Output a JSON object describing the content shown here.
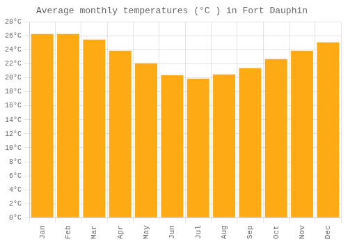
{
  "chart_data": {
    "type": "bar",
    "title": "Average monthly temperatures (°C ) in Fort Dauphin",
    "categories": [
      "Jan",
      "Feb",
      "Mar",
      "Apr",
      "May",
      "Jun",
      "Jul",
      "Aug",
      "Sep",
      "Oct",
      "Nov",
      "Dec"
    ],
    "values": [
      26.3,
      26.3,
      25.5,
      23.9,
      22.1,
      20.4,
      19.9,
      20.5,
      21.4,
      22.7,
      23.9,
      25.1
    ],
    "color": "#FDAA14",
    "ylim": [
      0,
      28
    ],
    "yticks": [
      {
        "value": 0,
        "label": "0°C"
      },
      {
        "value": 2,
        "label": "2°C"
      },
      {
        "value": 4,
        "label": "4°C"
      },
      {
        "value": 6,
        "label": "6°C"
      },
      {
        "value": 8,
        "label": "8°C"
      },
      {
        "value": 10,
        "label": "10°C"
      },
      {
        "value": 12,
        "label": "12°C"
      },
      {
        "value": 14,
        "label": "14°C"
      },
      {
        "value": 16,
        "label": "16°C"
      },
      {
        "value": 18,
        "label": "18°C"
      },
      {
        "value": 20,
        "label": "20°C"
      },
      {
        "value": 22,
        "label": "22°C"
      },
      {
        "value": 24,
        "label": "24°C"
      },
      {
        "value": 26,
        "label": "26°C"
      },
      {
        "value": 28,
        "label": "28°C"
      }
    ],
    "grid": true
  }
}
